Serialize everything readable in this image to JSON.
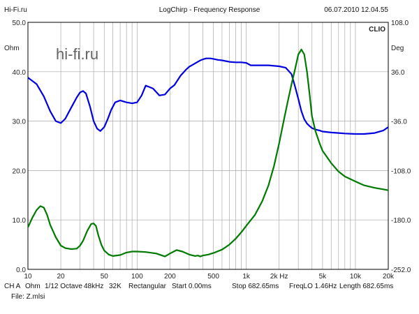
{
  "header": {
    "left": "Hi-Fi.ru",
    "center": "LogChirp - Frequency Response",
    "right": "06.07.2010 12.04.55"
  },
  "brand": "CLIO",
  "watermark": "hi-fi.ru",
  "footer": {
    "line1": [
      "CH A",
      "Ohm",
      "1/12 Octave",
      "48kHz",
      "32K",
      "Rectangular",
      "Start 0.00ms",
      "Stop 682.65ms",
      "FreqLO 1.46Hz",
      "Length 682.65ms"
    ],
    "line2": "File: Z.mlsi"
  },
  "chart_data": {
    "type": "line",
    "xscale": "log",
    "xlim": [
      10,
      20000
    ],
    "x_tick_labels": [
      "10",
      "20",
      "50",
      "100",
      "200",
      "500",
      "1k",
      "2k Hz",
      "5k",
      "10k",
      "20k"
    ],
    "x_tick_values": [
      10,
      20,
      50,
      100,
      200,
      500,
      1000,
      2000,
      5000,
      10000,
      20000
    ],
    "left_axis": {
      "unit": "Ohm",
      "ylim": [
        0,
        50
      ],
      "tick_labels": [
        "0.0",
        "10.0",
        "20.0",
        "30.0",
        "40.0",
        "50.0"
      ]
    },
    "right_axis": {
      "unit": "Deg",
      "ylim": [
        -252,
        108
      ],
      "tick_labels": [
        "-252.0",
        "-180.0",
        "-108.0",
        "-36.0",
        "36.0",
        "108.0"
      ]
    },
    "grid": true,
    "colors": {
      "impedance": "#0000e0",
      "phase": "#007a00",
      "grid": "#aaaaaa"
    },
    "series": [
      {
        "axis": "left",
        "color": "#0000e0",
        "x": [
          10,
          12,
          14,
          16,
          18,
          20,
          22,
          25,
          28,
          30,
          32,
          34,
          37,
          40,
          43,
          46,
          50,
          54,
          58,
          63,
          70,
          80,
          90,
          100,
          110,
          120,
          140,
          160,
          180,
          200,
          220,
          250,
          280,
          300,
          340,
          360,
          380,
          400,
          430,
          470,
          500,
          550,
          600,
          700,
          800,
          900,
          1000,
          1100,
          1300,
          1600,
          2000,
          2300,
          2600,
          2800,
          3000,
          3200,
          3400,
          3600,
          3800,
          4000,
          4300,
          4700,
          5000,
          6000,
          7000,
          8000,
          10000,
          12000,
          15000,
          18000,
          20000
        ],
        "y": [
          38.8,
          37.5,
          35.0,
          32.0,
          30.0,
          29.6,
          30.5,
          32.8,
          34.8,
          35.8,
          36.1,
          35.6,
          33.0,
          30.0,
          28.5,
          28.0,
          28.8,
          30.5,
          32.3,
          33.8,
          34.2,
          33.8,
          33.6,
          33.8,
          35.2,
          37.2,
          36.6,
          35.2,
          35.4,
          36.6,
          37.3,
          39.2,
          40.4,
          41.0,
          41.7,
          42.0,
          42.3,
          42.5,
          42.7,
          42.7,
          42.6,
          42.4,
          42.3,
          42.0,
          41.9,
          41.9,
          41.8,
          41.3,
          41.3,
          41.3,
          41.1,
          40.8,
          39.5,
          37.0,
          34.5,
          32.0,
          30.4,
          29.5,
          29.0,
          28.6,
          28.3,
          28.1,
          27.9,
          27.7,
          27.6,
          27.5,
          27.4,
          27.4,
          27.6,
          28.1,
          28.8
        ]
      },
      {
        "axis": "left",
        "color": "#007a00",
        "x": [
          10,
          11,
          12,
          13,
          14,
          15,
          16,
          18,
          20,
          22,
          25,
          28,
          30,
          32,
          35,
          38,
          40,
          42,
          44,
          47,
          50,
          55,
          60,
          70,
          80,
          90,
          100,
          120,
          150,
          180,
          200,
          230,
          260,
          300,
          340,
          360,
          380,
          400,
          450,
          500,
          600,
          700,
          800,
          900,
          1000,
          1200,
          1400,
          1600,
          1800,
          2000,
          2200,
          2400,
          2600,
          2800,
          3000,
          3200,
          3400,
          3600,
          3800,
          4000,
          4300,
          4700,
          5000,
          6000,
          7000,
          8000,
          10000,
          12000,
          15000,
          18000,
          20000
        ],
        "y": [
          8.5,
          10.5,
          12.0,
          12.8,
          12.5,
          11.0,
          9.0,
          6.5,
          4.8,
          4.3,
          4.1,
          4.2,
          4.8,
          5.8,
          7.8,
          9.2,
          9.3,
          8.8,
          7.0,
          5.0,
          3.8,
          3.0,
          2.7,
          2.9,
          3.4,
          3.6,
          3.6,
          3.5,
          3.2,
          2.6,
          3.2,
          3.9,
          3.6,
          3.0,
          2.7,
          2.8,
          2.6,
          2.8,
          3.0,
          3.3,
          4.0,
          5.0,
          6.2,
          7.5,
          8.8,
          11.0,
          13.8,
          17.0,
          21.0,
          25.5,
          30.0,
          34.0,
          37.5,
          40.5,
          43.5,
          44.5,
          43.5,
          40.0,
          35.5,
          31.0,
          28.0,
          25.5,
          24.0,
          21.5,
          19.8,
          18.8,
          17.8,
          17.0,
          16.5,
          16.2,
          16.0
        ]
      }
    ]
  }
}
